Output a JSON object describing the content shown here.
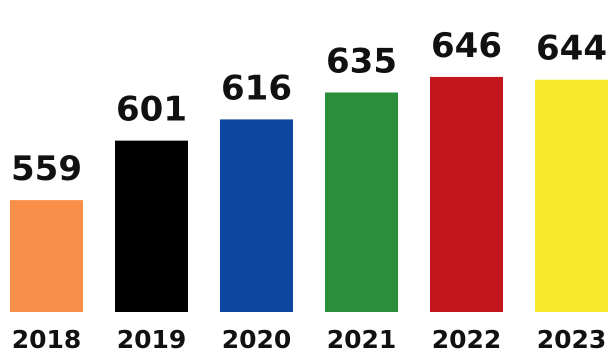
{
  "chart_data": {
    "type": "bar",
    "title": "",
    "xlabel": "",
    "ylabel": "",
    "categories": [
      "2018",
      "2019",
      "2020",
      "2021",
      "2022",
      "2023"
    ],
    "values": [
      559,
      601,
      616,
      635,
      646,
      644
    ],
    "data_labels": [
      "559",
      "601",
      "616",
      "635",
      "646",
      "644"
    ],
    "colors": [
      "#F99049",
      "#000000",
      "#0E47A1",
      "#2B8E3B",
      "#C3161C",
      "#F6E92B"
    ],
    "ylim": [
      480,
      665
    ],
    "grid": false,
    "legend": "none"
  }
}
